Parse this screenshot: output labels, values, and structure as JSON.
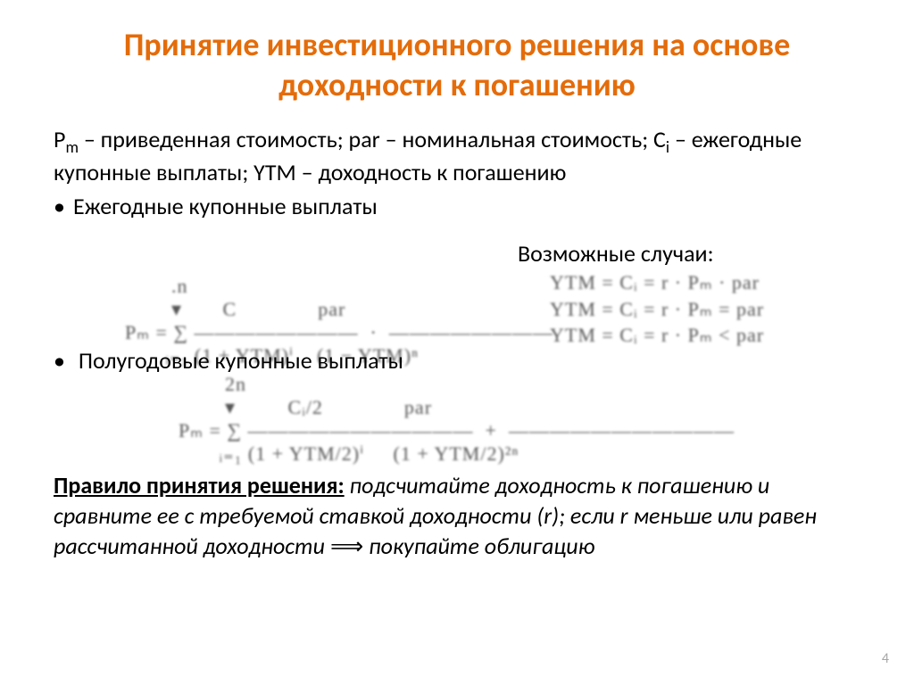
{
  "colors": {
    "title": "#e46c0a",
    "body": "#000000",
    "mathBlur": "#555555",
    "pageNumber": "#a6a6a6",
    "background": "#ffffff"
  },
  "typography": {
    "title_fontsize": 36,
    "body_fontsize": 26,
    "math_fontsize": 22,
    "pagenum_fontsize": 16,
    "font_family": "Calibri"
  },
  "title": "Принятие инвестиционного решения на основе доходности к погашению",
  "defs": {
    "pm": "P",
    "pm_sub": "m",
    "pm_desc": " – приведенная стоимость; par – номинальная стоимость; C",
    "ci_sub": "i",
    "ci_desc": " – ежегодные купонные выплаты; YTM – доходность к погашению"
  },
  "bullets": {
    "b1": "Ежегодные купонные выплаты",
    "cases_label": "Возможные случаи:",
    "b2": "Полугодовые купонные выплаты"
  },
  "formula1": "        .n\n        ▾       C              par\nPₘ = ∑ ――――――――  ·  ――――――――\n       ᵢ₌₁ (1 + YTM)ⁱ    (1 − YTM)ⁿ",
  "cases_math": "YTM = Cᵢ = r · Pₘ · par\nYTM = Cᵢ = r · Pₘ = par\nYTM = Cᵢ = r · Pₘ < par",
  "formula2": "        2n\n        ▾         Cᵢ/2              par\nPₘ = ∑ ―――――――――――  +  ―――――――――――\n       ᵢ₌₁ (1 + YTM/2)ⁱ     (1 + YTM/2)²ⁿ",
  "rule": {
    "label": "Правило принятия решения:",
    "text1": " подсчитайте доходность к погашению и сравните ее с требуемой ставкой доходности (r); если r меньше или равен рассчитанной доходности ",
    "implies": "⟹",
    "text2": " покупайте облигацию"
  },
  "pageNumber": "4"
}
